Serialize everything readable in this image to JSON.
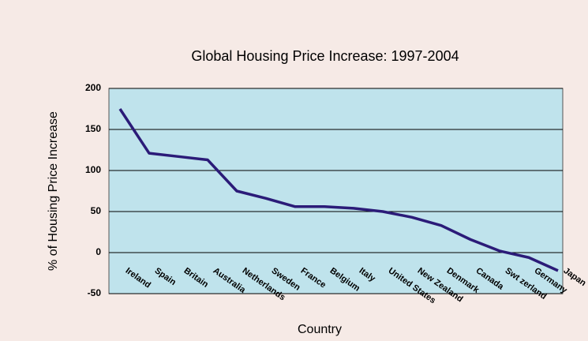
{
  "chart_data": {
    "type": "line",
    "title": "Global Housing Price Increase: 1997-2004",
    "x_label": "Country",
    "y_label": "% of Housing Price Increase",
    "categories": [
      "Ireland",
      "Spain",
      "Britain",
      "Australia",
      "Netherlands",
      "Sweden",
      "France",
      "Belgium",
      "Italy",
      "United States",
      "New Zealand",
      "Denmark",
      "Canada",
      "Swt zerland",
      "Germany",
      "Japan"
    ],
    "values": [
      175,
      121,
      117,
      113,
      75,
      66,
      56,
      56,
      54,
      50,
      43,
      33,
      16,
      2,
      -6,
      -22
    ],
    "color": "#2b1b78",
    "ylim": [
      -50,
      200
    ],
    "yticks": [
      -50,
      0,
      50,
      100,
      150,
      200
    ],
    "grid": true
  }
}
